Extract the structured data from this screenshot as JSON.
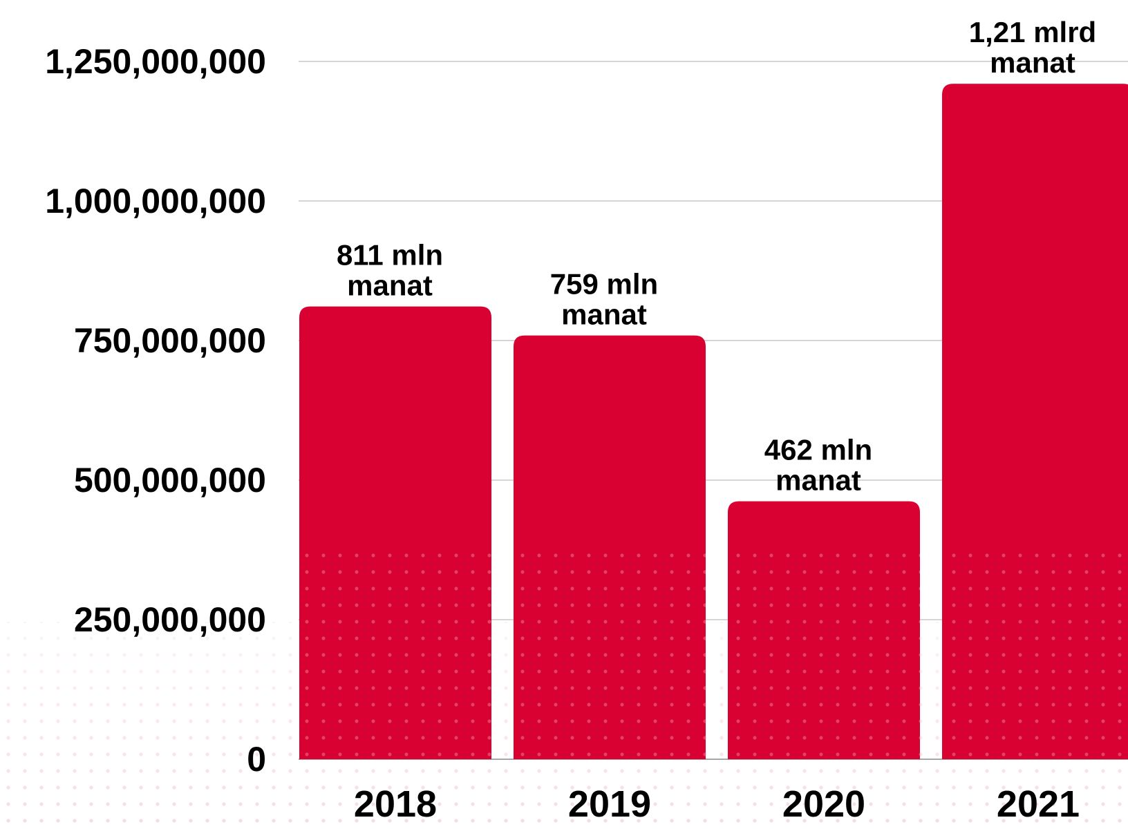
{
  "chart_data": {
    "type": "bar",
    "categories": [
      "2018",
      "2019",
      "2020",
      "2021"
    ],
    "values": [
      811000000,
      759000000,
      462000000,
      1210000000
    ],
    "value_labels": [
      "811 mln manat",
      "759 mln manat",
      "462 mln manat",
      "1,21 mlrd manat"
    ],
    "color": "#d90032",
    "ylim": [
      0,
      1360000000
    ],
    "yticks": [
      0,
      {
        "value": 250000000,
        "label": "250,000,000"
      },
      {
        "value": 500000000,
        "label": "500,000,000"
      },
      {
        "value": 750000000,
        "label": "750,000,000"
      },
      {
        "value": 1000000000,
        "label": "1,000,000,000"
      },
      {
        "value": 1250000000,
        "label": "1,250,000,000"
      }
    ],
    "grid": true
  }
}
